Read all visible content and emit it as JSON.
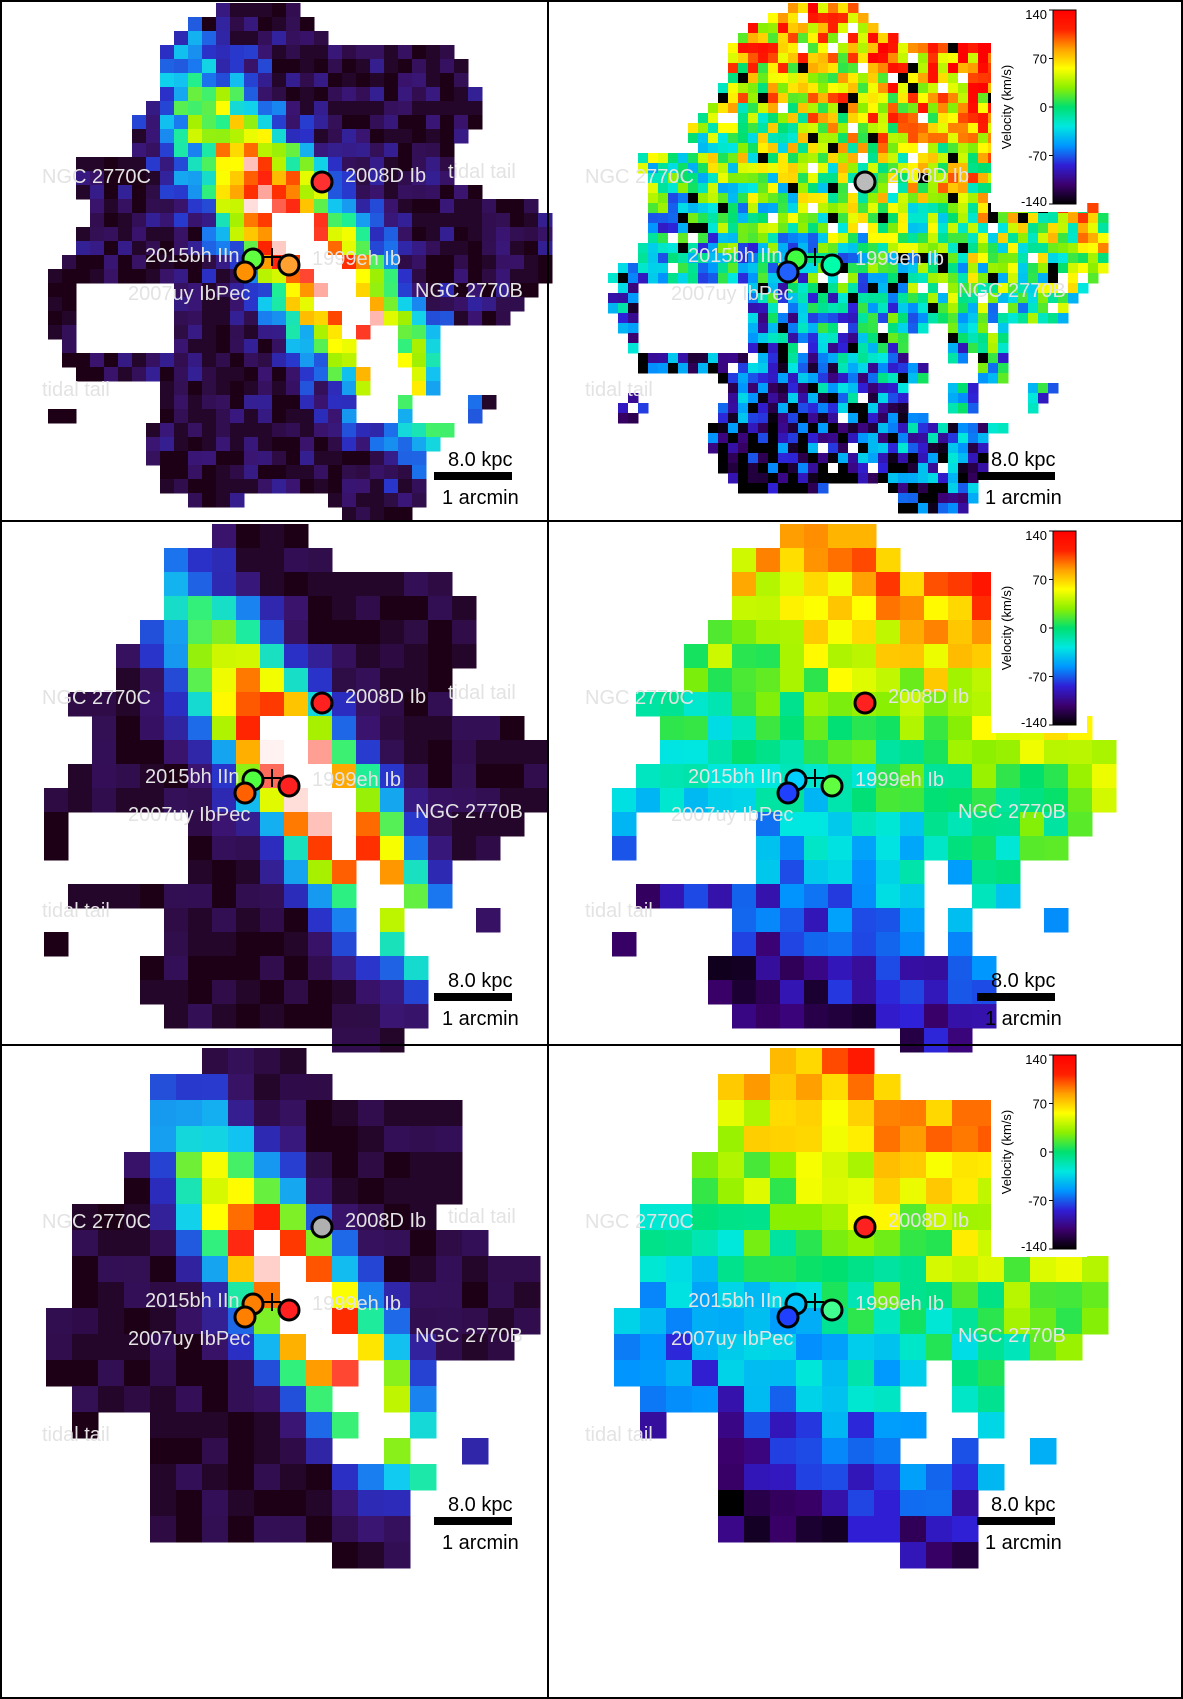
{
  "figure": {
    "rows": 3,
    "columns": 2,
    "left_column": "intensity",
    "right_column": "velocity"
  },
  "labels": {
    "galaxy_c": "NGC 2770C",
    "galaxy_b": "NGC 2770B",
    "tidal_tail": "tidal tail",
    "sn_2008d": "2008D Ib",
    "sn_1999eh": "1999eh Ib",
    "sn_2015bh": "2015bh IIn",
    "sn_2007uy": "2007uy IbPec"
  },
  "scalebar": {
    "distance": "8.0 kpc",
    "angle": "1 arcmin"
  },
  "colorbar": {
    "title": "Velocity (km/s)",
    "ticks": [
      "140",
      "70",
      "0",
      "-70",
      "-140"
    ],
    "tick_values": [
      140,
      70,
      0,
      -70,
      -140
    ],
    "range": [
      -140,
      140
    ],
    "colors": [
      "#000000",
      "#3c006e",
      "#2f1fd6",
      "#0096ff",
      "#00e8e0",
      "#00e070",
      "#8cf000",
      "#ffff00",
      "#ffa000",
      "#ff2000",
      "#ff0000"
    ]
  },
  "intensity_colors": [
    "#1c0014",
    "#2c0a3c",
    "#3a1470",
    "#2a30c8",
    "#1a78f0",
    "#10d0f0",
    "#20f090",
    "#a0f000",
    "#ffff00",
    "#ff9900",
    "#ff1a00",
    "#ffffff"
  ]
}
